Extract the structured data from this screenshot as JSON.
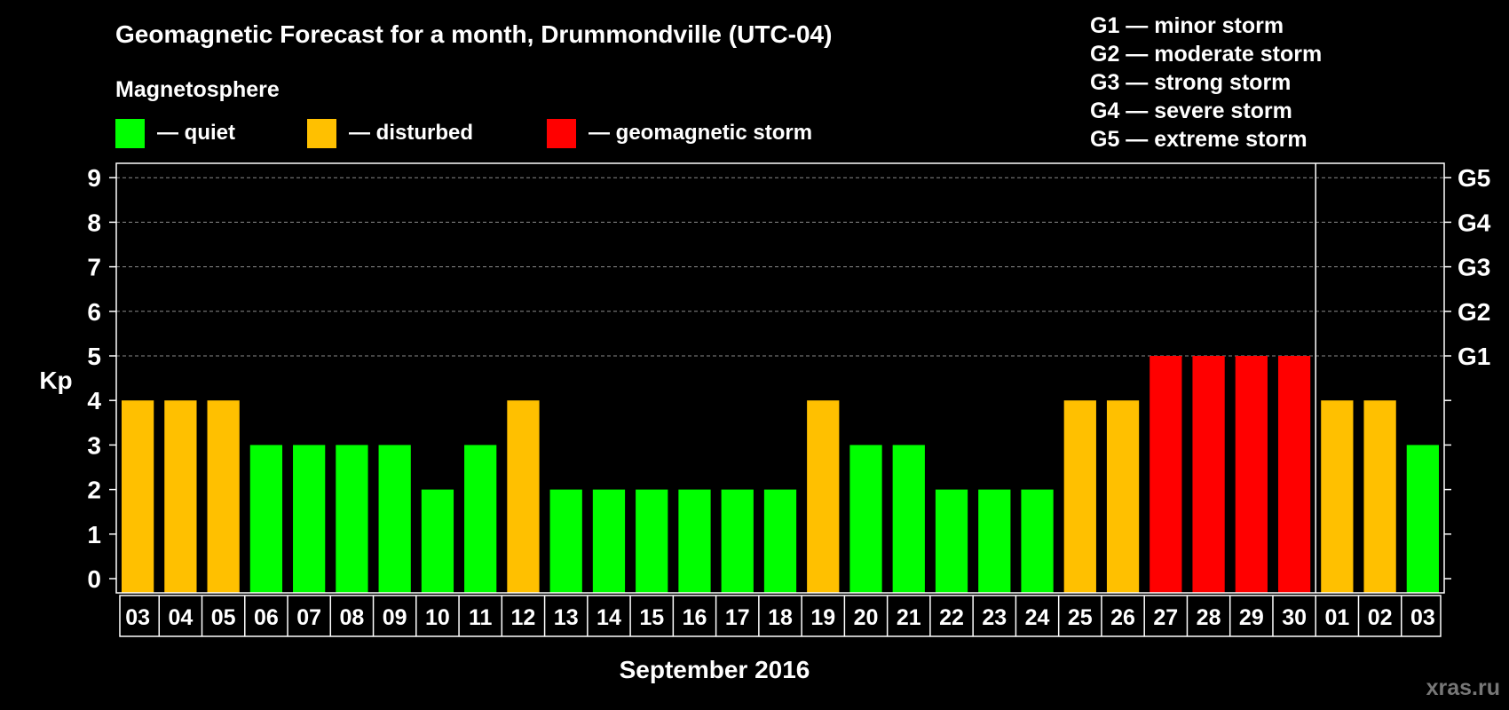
{
  "title": "Geomagnetic Forecast for a month, Drummondville (UTC-04)",
  "magnetosphere_label": "Magnetosphere",
  "legend": [
    {
      "label": "— quiet",
      "color": "#00ff00"
    },
    {
      "label": "— disturbed",
      "color": "#ffc000"
    },
    {
      "label": "— geomagnetic storm",
      "color": "#ff0000"
    }
  ],
  "storm_scale": [
    "G1 — minor storm",
    "G2 — moderate storm",
    "G3 — strong storm",
    "G4 — severe storm",
    "G5 — extreme storm"
  ],
  "watermark": "xras.ru",
  "chart_data": {
    "type": "bar",
    "title": "Geomagnetic Forecast for a month, Drummondville (UTC-04)",
    "xlabel": "September 2016",
    "ylabel": "Kp",
    "ylim": [
      0,
      9
    ],
    "y_ticks": [
      0,
      1,
      2,
      3,
      4,
      5,
      6,
      7,
      8,
      9
    ],
    "right_ticks": [
      {
        "value": 5,
        "label": "G1"
      },
      {
        "value": 6,
        "label": "G2"
      },
      {
        "value": 7,
        "label": "G3"
      },
      {
        "value": 8,
        "label": "G4"
      },
      {
        "value": 9,
        "label": "G5"
      }
    ],
    "categories": [
      "03",
      "04",
      "05",
      "06",
      "07",
      "08",
      "09",
      "10",
      "11",
      "12",
      "13",
      "14",
      "15",
      "16",
      "17",
      "18",
      "19",
      "20",
      "21",
      "22",
      "23",
      "24",
      "25",
      "26",
      "27",
      "28",
      "29",
      "30",
      "01",
      "02",
      "03"
    ],
    "values": [
      4,
      4,
      4,
      3,
      3,
      3,
      3,
      2,
      3,
      4,
      2,
      2,
      2,
      2,
      2,
      2,
      4,
      3,
      3,
      2,
      2,
      2,
      4,
      4,
      5,
      5,
      5,
      5,
      4,
      4,
      3
    ],
    "month_separator_after_index": 27,
    "color_rule": {
      "quiet_max": 3,
      "disturbed": 4,
      "storm_min": 5
    },
    "colors": {
      "quiet": "#00ff00",
      "disturbed": "#ffc000",
      "storm": "#ff0000"
    },
    "grid": "dashed at 5-9"
  }
}
